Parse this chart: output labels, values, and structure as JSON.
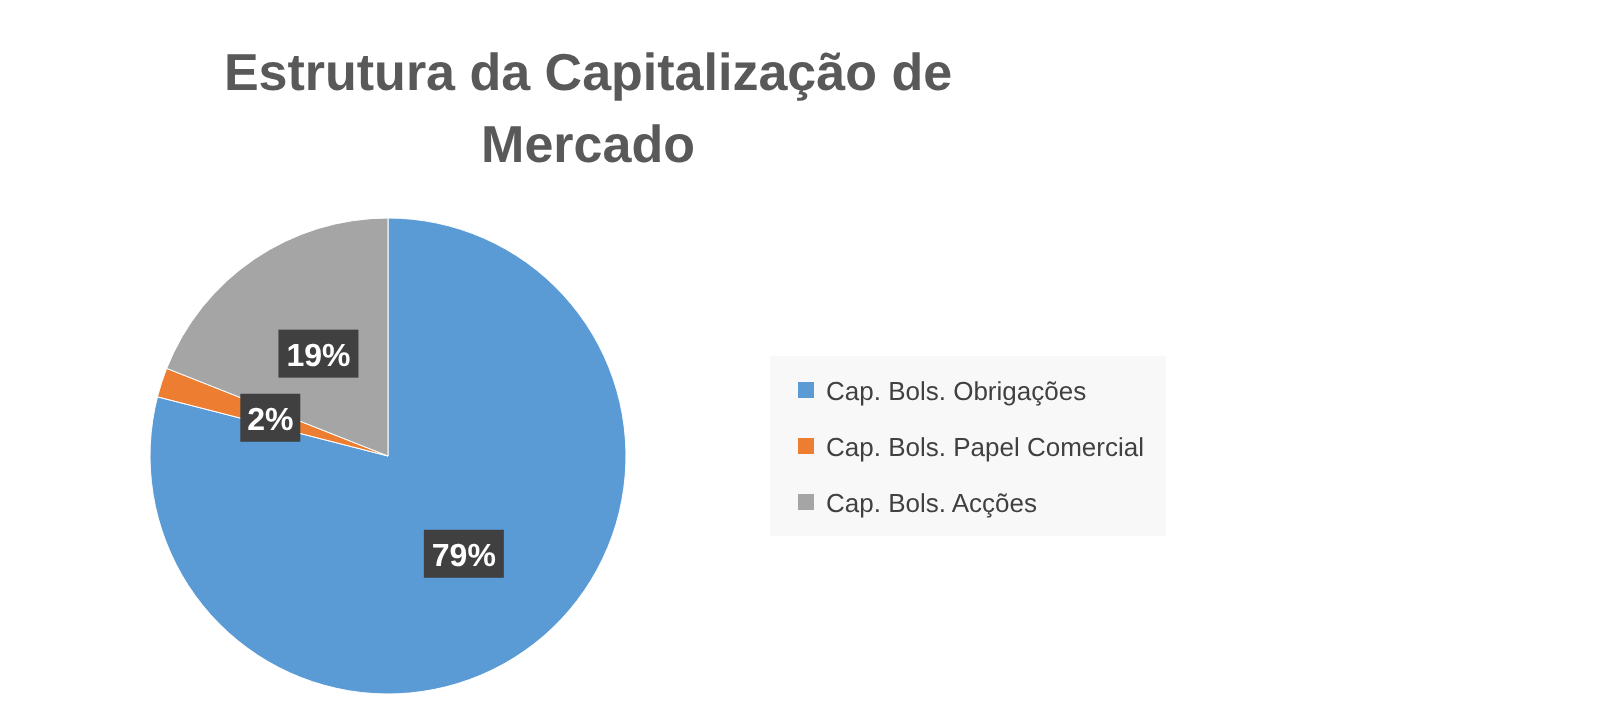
{
  "chart_data": {
    "type": "pie",
    "title": "Estrutura da Capitalização de Mercado",
    "categories": [
      "Cap. Bols. Obrigações",
      "Cap. Bols. Papel Comercial",
      "Cap. Bols. Acções"
    ],
    "values": [
      79,
      2,
      19
    ],
    "colors": [
      "#5b9bd5",
      "#ed7d31",
      "#a5a5a5"
    ],
    "value_labels": [
      "79%",
      "2%",
      "19%"
    ],
    "legend": "right"
  }
}
